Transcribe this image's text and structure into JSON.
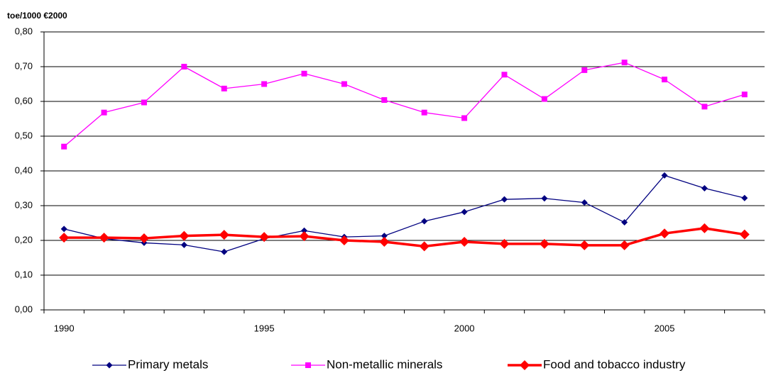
{
  "chart_data": {
    "type": "line",
    "y_label": "toe/1000 €2000",
    "categories": [
      "1990",
      null,
      null,
      null,
      null,
      "1995",
      null,
      null,
      null,
      null,
      "2000",
      null,
      null,
      null,
      null,
      "2005",
      null,
      null
    ],
    "series": [
      {
        "name": "Primary metals",
        "color": "#000080",
        "marker": "diamond",
        "values": [
          0.233,
          0.205,
          0.193,
          0.187,
          0.167,
          0.205,
          0.228,
          0.21,
          0.213,
          0.255,
          0.282,
          0.318,
          0.321,
          0.309,
          0.252,
          0.387,
          0.35,
          0.322
        ]
      },
      {
        "name": "Non-metallic minerals",
        "color": "#ff00ff",
        "marker": "square",
        "values": [
          0.47,
          0.568,
          0.597,
          0.7,
          0.637,
          0.65,
          0.68,
          0.65,
          0.604,
          0.568,
          0.552,
          0.677,
          0.607,
          0.69,
          0.712,
          0.663,
          0.585,
          0.62
        ]
      },
      {
        "name": "Food and tobacco industry",
        "color": "#ff0000",
        "marker": "big-diamond",
        "values": [
          0.208,
          0.208,
          0.206,
          0.213,
          0.216,
          0.21,
          0.212,
          0.2,
          0.196,
          0.183,
          0.196,
          0.19,
          0.19,
          0.186,
          0.186,
          0.22,
          0.235,
          0.217
        ]
      }
    ],
    "ylim": [
      0,
      0.8
    ],
    "yticks": [
      {
        "value": 0,
        "label": "0,00"
      },
      {
        "value": 0.1,
        "label": "0,10"
      },
      {
        "value": 0.2,
        "label": "0,20"
      },
      {
        "value": 0.3,
        "label": "0,30"
      },
      {
        "value": 0.4,
        "label": "0,40"
      },
      {
        "value": 0.5,
        "label": "0,50"
      },
      {
        "value": 0.6,
        "label": "0,60"
      },
      {
        "value": 0.7,
        "label": "0,70"
      },
      {
        "value": 0.8,
        "label": "0,80"
      }
    ],
    "grid": true,
    "legend": "bottom"
  }
}
